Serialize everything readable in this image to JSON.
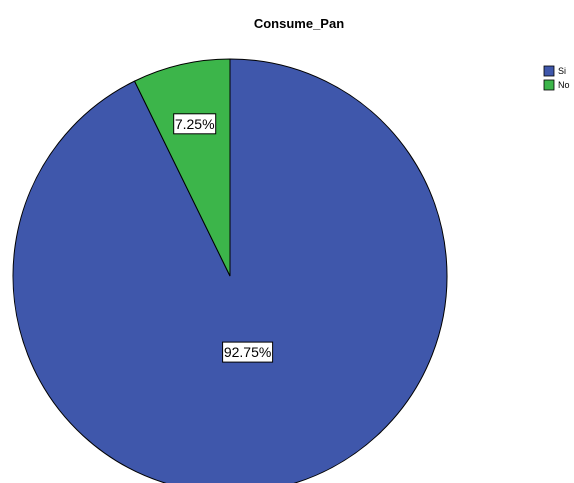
{
  "chart_data": {
    "type": "pie",
    "title": "Consume_Pan",
    "slices": [
      {
        "label": "Si",
        "value": 92.75,
        "display": "92.75%",
        "color": "#3f57ab"
      },
      {
        "label": "No",
        "value": 7.25,
        "display": "7.25%",
        "color": "#3cb54a"
      }
    ],
    "legend": {
      "placement": "top-right",
      "entries": [
        "Si",
        "No"
      ]
    },
    "start_angle_deg": 0,
    "direction": "clockwise"
  }
}
